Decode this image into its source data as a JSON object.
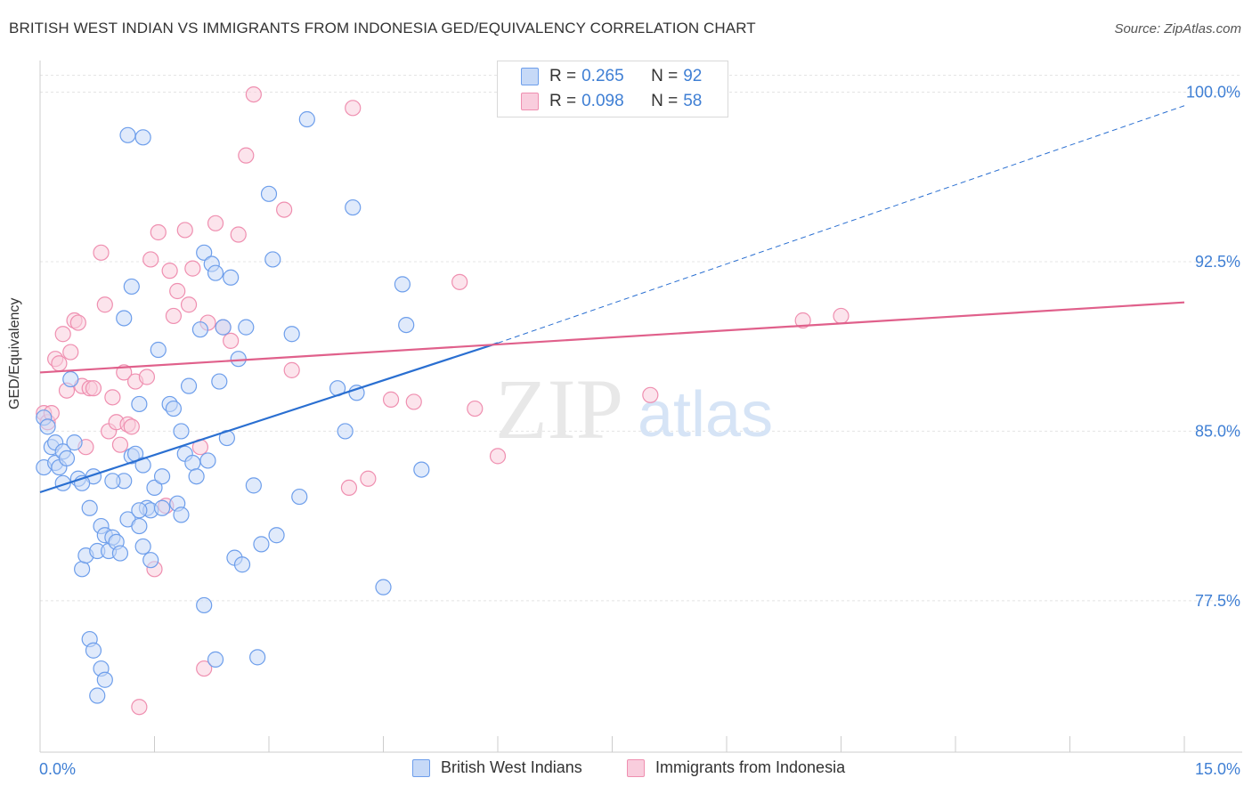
{
  "title": "BRITISH WEST INDIAN VS IMMIGRANTS FROM INDONESIA GED/EQUIVALENCY CORRELATION CHART",
  "source": "Source: ZipAtlas.com",
  "watermark": {
    "zip": "ZIP",
    "atlas": "atlas"
  },
  "legend": {
    "r_label": "R =",
    "n_label": "N =",
    "series": [
      {
        "name": "British West Indians",
        "r": "0.265",
        "n": "92",
        "color": "#6d9eeb",
        "fill": "#c6d9f7"
      },
      {
        "name": "Immigrants from Indonesia",
        "r": "0.098",
        "n": "58",
        "color": "#ef8fb0",
        "fill": "#f9cddd"
      }
    ]
  },
  "chart_data": {
    "type": "scatter",
    "title": "BRITISH WEST INDIAN VS IMMIGRANTS FROM INDONESIA GED/EQUIVALENCY CORRELATION CHART",
    "xlabel": "",
    "ylabel": "GED/Equivalency",
    "xlim": [
      0,
      15
    ],
    "ylim": [
      70.8,
      101.4
    ],
    "x_tick_labels": [
      "0.0%",
      "15.0%"
    ],
    "y_ticks": [
      77.5,
      85.0,
      92.5,
      100.0
    ],
    "y_tick_labels": [
      "77.5%",
      "85.0%",
      "92.5%",
      "100.0%"
    ],
    "grid": true,
    "legend_position": "top-center",
    "series": [
      {
        "name": "British West Indians",
        "color": "#6d9eeb",
        "trend": {
          "x0": 0,
          "y0": 82.3,
          "x1": 6.0,
          "y1": 88.9,
          "dashed_to_x": 15,
          "dashed_to_y": 99.4,
          "line_color": "#2a6fd1"
        },
        "points": [
          [
            0.05,
            83.4
          ],
          [
            0.05,
            85.6
          ],
          [
            0.1,
            85.2
          ],
          [
            0.15,
            84.3
          ],
          [
            0.2,
            84.5
          ],
          [
            0.2,
            83.6
          ],
          [
            0.25,
            83.4
          ],
          [
            0.3,
            84.1
          ],
          [
            0.3,
            82.7
          ],
          [
            0.35,
            83.8
          ],
          [
            0.4,
            87.3
          ],
          [
            0.45,
            84.5
          ],
          [
            0.5,
            82.9
          ],
          [
            0.55,
            78.9
          ],
          [
            0.6,
            79.5
          ],
          [
            0.65,
            81.6
          ],
          [
            0.7,
            83.0
          ],
          [
            0.75,
            79.7
          ],
          [
            0.8,
            80.8
          ],
          [
            0.85,
            80.4
          ],
          [
            0.9,
            79.7
          ],
          [
            0.95,
            80.3
          ],
          [
            1.0,
            80.1
          ],
          [
            1.05,
            79.6
          ],
          [
            1.1,
            82.8
          ],
          [
            1.15,
            81.1
          ],
          [
            1.2,
            83.9
          ],
          [
            1.25,
            84.0
          ],
          [
            1.3,
            80.8
          ],
          [
            1.35,
            83.5
          ],
          [
            1.4,
            81.6
          ],
          [
            1.45,
            81.5
          ],
          [
            1.5,
            82.5
          ],
          [
            1.55,
            88.6
          ],
          [
            1.6,
            83.0
          ],
          [
            1.7,
            86.2
          ],
          [
            1.75,
            86.0
          ],
          [
            1.8,
            81.8
          ],
          [
            1.85,
            81.3
          ],
          [
            1.9,
            84.0
          ],
          [
            1.95,
            87.0
          ],
          [
            2.0,
            83.6
          ],
          [
            2.05,
            83.0
          ],
          [
            2.1,
            89.5
          ],
          [
            2.15,
            92.9
          ],
          [
            2.2,
            83.7
          ],
          [
            2.25,
            92.4
          ],
          [
            2.3,
            92.0
          ],
          [
            2.35,
            87.2
          ],
          [
            2.4,
            89.6
          ],
          [
            2.45,
            84.7
          ],
          [
            2.5,
            91.8
          ],
          [
            2.55,
            79.4
          ],
          [
            2.6,
            88.2
          ],
          [
            2.65,
            79.1
          ],
          [
            2.7,
            89.6
          ],
          [
            2.8,
            82.6
          ],
          [
            2.85,
            75.0
          ],
          [
            2.9,
            80.0
          ],
          [
            3.0,
            95.5
          ],
          [
            3.05,
            92.6
          ],
          [
            3.1,
            80.4
          ],
          [
            3.3,
            89.3
          ],
          [
            3.4,
            82.1
          ],
          [
            3.5,
            98.8
          ],
          [
            3.9,
            86.9
          ],
          [
            4.1,
            94.9
          ],
          [
            4.15,
            86.7
          ],
          [
            4.5,
            78.1
          ],
          [
            4.75,
            91.5
          ],
          [
            4.8,
            89.7
          ],
          [
            5.0,
            83.3
          ],
          [
            1.15,
            98.1
          ],
          [
            1.35,
            98.0
          ],
          [
            1.2,
            91.4
          ],
          [
            1.1,
            90.0
          ],
          [
            1.3,
            86.2
          ],
          [
            0.65,
            75.8
          ],
          [
            0.7,
            75.3
          ],
          [
            0.8,
            74.5
          ],
          [
            0.85,
            74.0
          ],
          [
            0.75,
            73.3
          ],
          [
            1.3,
            81.5
          ],
          [
            1.35,
            79.9
          ],
          [
            1.45,
            79.3
          ],
          [
            2.15,
            77.3
          ],
          [
            2.3,
            74.9
          ],
          [
            4.0,
            85.0
          ],
          [
            0.55,
            82.7
          ],
          [
            1.6,
            81.6
          ],
          [
            1.85,
            85.0
          ],
          [
            0.95,
            82.8
          ]
        ]
      },
      {
        "name": "Immigrants from Indonesia",
        "color": "#ef8fb0",
        "trend": {
          "x0": 0,
          "y0": 87.6,
          "x1": 15,
          "y1": 90.7,
          "line_color": "#e0608b"
        },
        "points": [
          [
            0.05,
            85.8
          ],
          [
            0.1,
            85.4
          ],
          [
            0.15,
            85.8
          ],
          [
            0.2,
            88.2
          ],
          [
            0.25,
            88.0
          ],
          [
            0.3,
            89.3
          ],
          [
            0.35,
            86.8
          ],
          [
            0.4,
            88.5
          ],
          [
            0.45,
            89.9
          ],
          [
            0.5,
            89.8
          ],
          [
            0.55,
            87.0
          ],
          [
            0.6,
            84.3
          ],
          [
            0.65,
            86.9
          ],
          [
            0.7,
            86.9
          ],
          [
            0.8,
            92.9
          ],
          [
            0.85,
            90.6
          ],
          [
            0.9,
            85.0
          ],
          [
            0.95,
            86.5
          ],
          [
            1.0,
            85.4
          ],
          [
            1.05,
            84.4
          ],
          [
            1.1,
            87.6
          ],
          [
            1.15,
            85.3
          ],
          [
            1.2,
            85.2
          ],
          [
            1.25,
            87.2
          ],
          [
            1.3,
            72.8
          ],
          [
            1.4,
            87.4
          ],
          [
            1.45,
            92.6
          ],
          [
            1.5,
            78.9
          ],
          [
            1.55,
            93.8
          ],
          [
            1.65,
            81.7
          ],
          [
            1.7,
            92.1
          ],
          [
            1.75,
            90.1
          ],
          [
            1.8,
            91.2
          ],
          [
            1.9,
            93.9
          ],
          [
            1.95,
            90.6
          ],
          [
            2.0,
            92.2
          ],
          [
            2.1,
            84.3
          ],
          [
            2.15,
            74.5
          ],
          [
            2.2,
            89.8
          ],
          [
            2.3,
            94.2
          ],
          [
            2.4,
            89.6
          ],
          [
            2.5,
            89.0
          ],
          [
            2.6,
            93.7
          ],
          [
            2.7,
            97.2
          ],
          [
            2.8,
            99.9
          ],
          [
            3.2,
            94.8
          ],
          [
            3.3,
            87.7
          ],
          [
            4.05,
            82.5
          ],
          [
            4.1,
            99.3
          ],
          [
            4.3,
            82.9
          ],
          [
            4.6,
            86.4
          ],
          [
            4.9,
            86.3
          ],
          [
            5.5,
            91.6
          ],
          [
            5.7,
            86.0
          ],
          [
            6.0,
            83.9
          ],
          [
            8.0,
            86.6
          ],
          [
            10.0,
            89.9
          ],
          [
            10.5,
            90.1
          ]
        ]
      }
    ]
  }
}
